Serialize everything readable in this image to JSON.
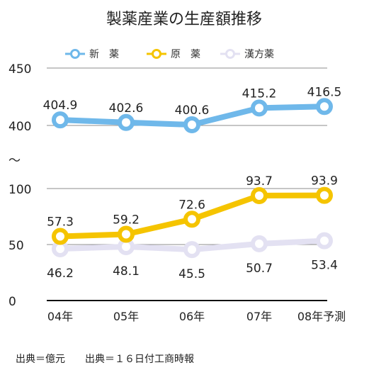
{
  "chart_data": {
    "type": "line",
    "title": "製薬産業の生産額推移",
    "categories": [
      "04年",
      "05年",
      "06年",
      "07年",
      "08年予測"
    ],
    "series": [
      {
        "name": "新　薬",
        "values": [
          404.9,
          402.6,
          400.6,
          415.2,
          416.5
        ],
        "color": "#6fb8ea",
        "labels": [
          "404.9",
          "402.6",
          "400.6",
          "415.2",
          "416.5"
        ]
      },
      {
        "name": "原　薬",
        "values": [
          57.3,
          59.2,
          72.6,
          93.7,
          93.9
        ],
        "color": "#f5c400",
        "labels": [
          "57.3",
          "59.2",
          "72.6",
          "93.7",
          "93.9"
        ]
      },
      {
        "name": "漢方薬",
        "values": [
          46.2,
          48.1,
          45.5,
          50.7,
          53.4
        ],
        "color": "#e3e1f2",
        "labels": [
          "46.2",
          "48.1",
          "45.5",
          "50.7",
          "53.4"
        ]
      }
    ],
    "y_ticks": [
      "450",
      "400",
      "〜",
      "100",
      "50",
      "0"
    ],
    "axis_break": {
      "lower_range": [
        0,
        100
      ],
      "upper_range": [
        400,
        450
      ]
    },
    "grid": true,
    "legend": "top",
    "source_note": "出典＝億元　　出典＝１６日付工商時報"
  }
}
